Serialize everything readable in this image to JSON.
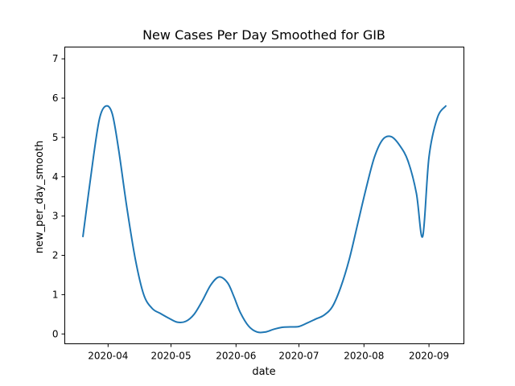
{
  "chart_data": {
    "type": "line",
    "title": "New Cases Per Day Smoothed for GIB",
    "xlabel": "date",
    "ylabel": "new_per_day_smooth",
    "x": [
      "2020-03-20",
      "2020-03-25",
      "2020-03-28",
      "2020-03-31",
      "2020-04-03",
      "2020-04-06",
      "2020-04-10",
      "2020-04-14",
      "2020-04-18",
      "2020-04-22",
      "2020-04-26",
      "2020-04-30",
      "2020-05-04",
      "2020-05-08",
      "2020-05-12",
      "2020-05-16",
      "2020-05-20",
      "2020-05-24",
      "2020-05-28",
      "2020-05-31",
      "2020-06-03",
      "2020-06-07",
      "2020-06-11",
      "2020-06-15",
      "2020-06-19",
      "2020-06-23",
      "2020-06-27",
      "2020-07-01",
      "2020-07-05",
      "2020-07-09",
      "2020-07-13",
      "2020-07-17",
      "2020-07-21",
      "2020-07-25",
      "2020-07-29",
      "2020-08-02",
      "2020-08-06",
      "2020-08-10",
      "2020-08-14",
      "2020-08-18",
      "2020-08-22",
      "2020-08-26",
      "2020-08-29",
      "2020-09-01",
      "2020-09-05",
      "2020-09-09"
    ],
    "series": [
      {
        "color": "#1f77b4",
        "values": [
          2.48,
          4.5,
          5.5,
          5.8,
          5.6,
          4.7,
          3.2,
          1.9,
          1.0,
          0.65,
          0.52,
          0.4,
          0.3,
          0.32,
          0.5,
          0.85,
          1.25,
          1.45,
          1.3,
          0.95,
          0.55,
          0.2,
          0.05,
          0.05,
          0.12,
          0.17,
          0.18,
          0.19,
          0.28,
          0.38,
          0.48,
          0.7,
          1.2,
          1.9,
          2.8,
          3.7,
          4.5,
          4.95,
          5.02,
          4.8,
          4.4,
          3.58,
          2.48,
          4.5,
          5.5,
          5.8
        ]
      }
    ],
    "xticks": [
      "2020-04",
      "2020-05",
      "2020-06",
      "2020-07",
      "2020-08",
      "2020-09"
    ],
    "yticks": [
      0,
      1,
      2,
      3,
      4,
      5,
      6,
      7
    ],
    "ylim": [
      -0.25,
      7.3
    ],
    "grid": false,
    "legend": "none"
  }
}
